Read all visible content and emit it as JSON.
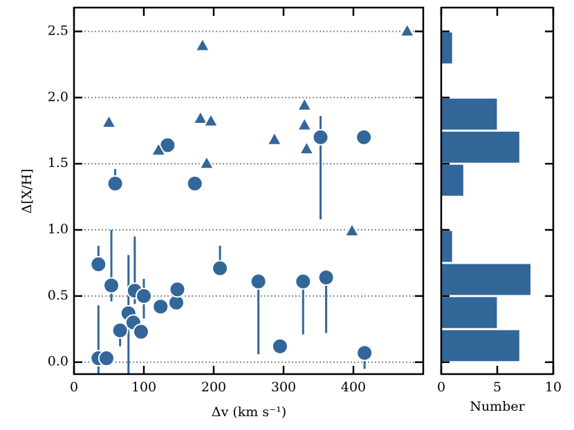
{
  "chart_data": [
    {
      "type": "scatter",
      "xlabel": "Δv (km s⁻¹)",
      "ylabel": "Δ[X/H]",
      "xlim": [
        0,
        500
      ],
      "ylim": [
        -0.09,
        2.68
      ],
      "xticks": [
        0,
        100,
        200,
        300,
        400
      ],
      "yticks": [
        {
          "value": 0,
          "label": "0.0"
        },
        0.5,
        {
          "value": 1,
          "label": "1.0"
        },
        1.5,
        {
          "value": 2,
          "label": "2.0"
        },
        2.5
      ],
      "grid": true,
      "series": [
        {
          "marker": "circle",
          "color": "#336699",
          "x": [
            35,
            46.5,
            35,
            53.5,
            66,
            78,
            87,
            85,
            96,
            100,
            124,
            146.5,
            148,
            59,
            134,
            173,
            209,
            264,
            328,
            361,
            295,
            416,
            353,
            415
          ],
          "values": [
            0.03,
            0.03,
            0.74,
            0.58,
            0.24,
            0.37,
            0.54,
            0.3,
            0.23,
            0.5,
            0.42,
            0.45,
            0.55,
            1.35,
            1.64,
            1.35,
            0.71,
            0.61,
            0.61,
            0.64,
            0.12,
            0.07,
            1.7,
            1.7
          ],
          "err_low": [
            0.12,
            null,
            null,
            0.12,
            0.12,
            0.46,
            0.1,
            null,
            null,
            0.17,
            null,
            null,
            null,
            null,
            null,
            null,
            null,
            0.55,
            0.4,
            0.42,
            null,
            0.12,
            0.62,
            null
          ],
          "err_high": [
            0.4,
            null,
            0.14,
            0.42,
            null,
            0.44,
            0.41,
            null,
            null,
            0.13,
            null,
            null,
            null,
            0.11,
            null,
            null,
            0.17,
            null,
            null,
            null,
            null,
            null,
            0.16,
            null
          ]
        },
        {
          "marker": "triangle",
          "color": "#336699",
          "x": [
            50,
            121,
            181,
            196,
            184,
            190,
            287,
            330,
            330,
            333,
            398,
            477
          ],
          "values": [
            1.81,
            1.6,
            1.84,
            1.82,
            2.39,
            1.5,
            1.68,
            1.94,
            1.79,
            1.61,
            0.99,
            2.5
          ]
        }
      ]
    },
    {
      "type": "histogram",
      "orientation": "horizontal",
      "color": "#336699",
      "xlabel": "Number",
      "xlim": [
        0,
        10
      ],
      "xticks": [
        0,
        5,
        10
      ],
      "ylim": [
        -0.09,
        2.68
      ],
      "bins": [
        0,
        0.25,
        0.5,
        0.75,
        1.0,
        1.25,
        1.5,
        1.75,
        2.0,
        2.25,
        2.5
      ],
      "values": [
        7,
        5,
        8,
        1,
        0,
        2,
        7,
        5,
        0,
        1
      ]
    }
  ]
}
